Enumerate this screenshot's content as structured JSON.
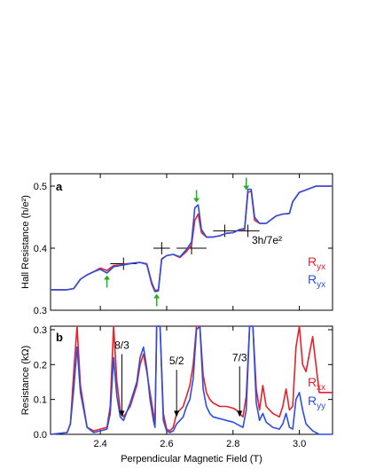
{
  "colors": {
    "red": "#e8202a",
    "blue": "#2a4fe0",
    "green": "#22b022",
    "axis": "#000000"
  },
  "chart_data": [
    {
      "panel_label": "a",
      "type": "line",
      "ylabel": "Hall Resistance (h/e²)",
      "xlim": [
        2.25,
        3.1
      ],
      "ylim": [
        0.3,
        0.52
      ],
      "yticks": [
        "0.3",
        "0.4",
        "0.5"
      ],
      "ytick_values": [
        0.3,
        0.4,
        0.5
      ],
      "xticks_values": [
        2.4,
        2.6,
        2.8,
        3.0
      ],
      "annotation": "3h/7e²",
      "legend": [
        {
          "label": "R",
          "sub": "yx",
          "color": "red"
        },
        {
          "label": "R",
          "sub": "yx",
          "color": "blue"
        }
      ],
      "green_arrows": [
        {
          "x": 2.42,
          "y": 0.345,
          "dir": "up"
        },
        {
          "x": 2.57,
          "y": 0.315,
          "dir": "up"
        },
        {
          "x": 2.69,
          "y": 0.485,
          "dir": "down"
        },
        {
          "x": 2.84,
          "y": 0.505,
          "dir": "down"
        }
      ],
      "plateau_marks": [
        {
          "x0": 2.43,
          "x1": 2.51,
          "y": 0.375
        },
        {
          "x0": 2.56,
          "x1": 2.61,
          "y": 0.4
        },
        {
          "x0": 2.63,
          "x1": 2.72,
          "y": 0.4
        },
        {
          "x0": 2.74,
          "x1": 2.81,
          "y": 0.428
        },
        {
          "x0": 2.81,
          "x1": 2.88,
          "y": 0.428
        }
      ],
      "series": [
        {
          "color": "red",
          "x": [
            2.25,
            2.3,
            2.32,
            2.34,
            2.36,
            2.38,
            2.4,
            2.42,
            2.44,
            2.46,
            2.48,
            2.5,
            2.52,
            2.54,
            2.555,
            2.565,
            2.575,
            2.585,
            2.6,
            2.62,
            2.64,
            2.66,
            2.675,
            2.685,
            2.695,
            2.705,
            2.72,
            2.74,
            2.76,
            2.78,
            2.8,
            2.82,
            2.835,
            2.845,
            2.855,
            2.865,
            2.88,
            2.9,
            2.93,
            2.95,
            2.97,
            2.98,
            3.0,
            3.02,
            3.05,
            3.1
          ],
          "y": [
            0.333,
            0.333,
            0.335,
            0.35,
            0.357,
            0.362,
            0.368,
            0.364,
            0.372,
            0.373,
            0.375,
            0.376,
            0.377,
            0.375,
            0.345,
            0.332,
            0.333,
            0.383,
            0.388,
            0.39,
            0.385,
            0.395,
            0.405,
            0.445,
            0.455,
            0.425,
            0.418,
            0.418,
            0.42,
            0.424,
            0.425,
            0.43,
            0.43,
            0.49,
            0.492,
            0.445,
            0.44,
            0.44,
            0.452,
            0.455,
            0.456,
            0.475,
            0.49,
            0.494,
            0.5,
            0.5
          ]
        },
        {
          "color": "blue",
          "x": [
            2.25,
            2.3,
            2.32,
            2.34,
            2.36,
            2.38,
            2.4,
            2.42,
            2.44,
            2.46,
            2.48,
            2.5,
            2.52,
            2.54,
            2.555,
            2.565,
            2.575,
            2.585,
            2.6,
            2.62,
            2.64,
            2.66,
            2.675,
            2.685,
            2.695,
            2.705,
            2.72,
            2.74,
            2.76,
            2.78,
            2.8,
            2.82,
            2.835,
            2.845,
            2.855,
            2.865,
            2.88,
            2.9,
            2.93,
            2.95,
            2.97,
            2.98,
            3.0,
            3.02,
            3.05,
            3.1
          ],
          "y": [
            0.333,
            0.333,
            0.335,
            0.35,
            0.357,
            0.362,
            0.366,
            0.36,
            0.37,
            0.372,
            0.374,
            0.376,
            0.377,
            0.374,
            0.342,
            0.33,
            0.331,
            0.382,
            0.388,
            0.39,
            0.386,
            0.398,
            0.41,
            0.465,
            0.47,
            0.43,
            0.418,
            0.418,
            0.42,
            0.424,
            0.425,
            0.43,
            0.432,
            0.495,
            0.495,
            0.45,
            0.44,
            0.44,
            0.452,
            0.455,
            0.456,
            0.475,
            0.49,
            0.494,
            0.5,
            0.5
          ]
        }
      ]
    },
    {
      "panel_label": "b",
      "type": "line",
      "xlabel": "Perpendicular Magnetic Field (T)",
      "ylabel": "Resistance (kΩ)",
      "xlim": [
        2.25,
        3.1
      ],
      "ylim": [
        0.0,
        0.31
      ],
      "xticks": [
        "2.4",
        "2.6",
        "2.8",
        "3.0"
      ],
      "xtick_values": [
        2.4,
        2.6,
        2.8,
        3.0
      ],
      "yticks": [
        "0.0",
        "0.1",
        "0.2",
        "0.3"
      ],
      "ytick_values": [
        0.0,
        0.1,
        0.2,
        0.3
      ],
      "legend": [
        {
          "label": "R",
          "sub": "xx",
          "color": "red"
        },
        {
          "label": "R",
          "sub": "yy",
          "color": "blue"
        }
      ],
      "annotations": [
        {
          "text": "8/3",
          "x": 2.465,
          "arrow_from": 0.235,
          "arrow_to": 0.05
        },
        {
          "text": "5/2",
          "x": 2.63,
          "arrow_from": 0.19,
          "arrow_to": 0.05
        },
        {
          "text": "7/3",
          "x": 2.82,
          "arrow_from": 0.2,
          "arrow_to": 0.05
        }
      ],
      "series": [
        {
          "color": "red",
          "x": [
            2.25,
            2.3,
            2.31,
            2.32,
            2.33,
            2.34,
            2.36,
            2.38,
            2.4,
            2.42,
            2.43,
            2.44,
            2.45,
            2.46,
            2.47,
            2.49,
            2.51,
            2.52,
            2.53,
            2.54,
            2.55,
            2.56,
            2.565,
            2.57,
            2.58,
            2.59,
            2.6,
            2.61,
            2.62,
            2.63,
            2.64,
            2.65,
            2.66,
            2.67,
            2.68,
            2.69,
            2.7,
            2.71,
            2.72,
            2.73,
            2.74,
            2.76,
            2.78,
            2.8,
            2.81,
            2.82,
            2.83,
            2.84,
            2.85,
            2.86,
            2.87,
            2.88,
            2.89,
            2.9,
            2.92,
            2.94,
            2.95,
            2.96,
            2.97,
            2.98,
            2.99,
            3.0,
            3.01,
            3.02,
            3.04,
            3.06,
            3.1
          ],
          "y": [
            0.0,
            0.005,
            0.03,
            0.18,
            0.31,
            0.14,
            0.02,
            0.01,
            0.015,
            0.02,
            0.08,
            0.31,
            0.15,
            0.07,
            0.05,
            0.08,
            0.14,
            0.2,
            0.23,
            0.18,
            0.12,
            0.06,
            0.03,
            0.31,
            0.31,
            0.06,
            0.015,
            0.01,
            0.02,
            0.06,
            0.07,
            0.08,
            0.11,
            0.14,
            0.2,
            0.31,
            0.31,
            0.17,
            0.12,
            0.1,
            0.09,
            0.08,
            0.08,
            0.075,
            0.07,
            0.06,
            0.05,
            0.11,
            0.31,
            0.31,
            0.13,
            0.07,
            0.14,
            0.08,
            0.06,
            0.05,
            0.08,
            0.13,
            0.07,
            0.08,
            0.25,
            0.31,
            0.2,
            0.18,
            0.28,
            0.12,
            0.12
          ]
        },
        {
          "color": "blue",
          "x": [
            2.25,
            2.3,
            2.31,
            2.32,
            2.33,
            2.34,
            2.36,
            2.38,
            2.4,
            2.42,
            2.43,
            2.44,
            2.45,
            2.46,
            2.47,
            2.49,
            2.51,
            2.52,
            2.53,
            2.54,
            2.55,
            2.56,
            2.565,
            2.57,
            2.58,
            2.59,
            2.6,
            2.61,
            2.62,
            2.63,
            2.64,
            2.65,
            2.66,
            2.67,
            2.68,
            2.69,
            2.7,
            2.71,
            2.72,
            2.73,
            2.74,
            2.76,
            2.78,
            2.8,
            2.81,
            2.82,
            2.83,
            2.84,
            2.85,
            2.86,
            2.87,
            2.88,
            2.89,
            2.9,
            2.92,
            2.94,
            2.95,
            2.96,
            2.97,
            2.98,
            2.99,
            3.0,
            3.01,
            3.02,
            3.04,
            3.06,
            3.1
          ],
          "y": [
            0.0,
            0.005,
            0.03,
            0.13,
            0.25,
            0.12,
            0.02,
            0.005,
            0.01,
            0.015,
            0.06,
            0.22,
            0.11,
            0.05,
            0.04,
            0.09,
            0.15,
            0.22,
            0.25,
            0.19,
            0.1,
            0.04,
            0.02,
            0.31,
            0.31,
            0.04,
            0.01,
            0.005,
            0.01,
            0.03,
            0.04,
            0.05,
            0.08,
            0.1,
            0.16,
            0.3,
            0.31,
            0.13,
            0.08,
            0.06,
            0.05,
            0.045,
            0.04,
            0.035,
            0.03,
            0.025,
            0.02,
            0.07,
            0.31,
            0.31,
            0.09,
            0.04,
            0.06,
            0.035,
            0.02,
            0.015,
            0.03,
            0.06,
            0.02,
            0.015,
            0.1,
            0.12,
            0.07,
            0.03,
            0.01,
            0.0,
            0.0
          ]
        }
      ]
    }
  ]
}
